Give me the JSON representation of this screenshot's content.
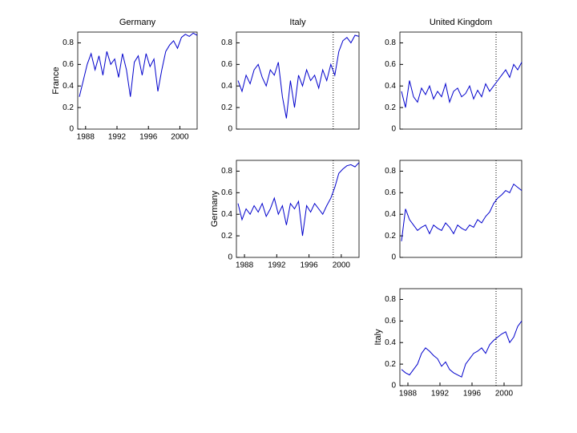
{
  "chart_data": [
    {
      "type": "line",
      "title": "Germany",
      "ylabel": "France",
      "x": [
        1987.2,
        1987.7,
        1988.2,
        1988.7,
        1989.2,
        1989.7,
        1990.2,
        1990.7,
        1991.2,
        1991.7,
        1992.2,
        1992.7,
        1993.2,
        1993.7,
        1994.2,
        1994.7,
        1995.2,
        1995.7,
        1996.2,
        1996.7,
        1997.2,
        1997.7,
        1998.2,
        1998.7,
        1999.2,
        1999.7,
        2000.2,
        2000.7,
        2001.2,
        2001.7,
        2002.2
      ],
      "series": [
        {
          "color": "#0000cc",
          "values": [
            0.3,
            0.45,
            0.6,
            0.7,
            0.55,
            0.68,
            0.5,
            0.72,
            0.6,
            0.65,
            0.48,
            0.7,
            0.55,
            0.3,
            0.62,
            0.68,
            0.5,
            0.7,
            0.58,
            0.65,
            0.35,
            0.55,
            0.72,
            0.78,
            0.82,
            0.75,
            0.85,
            0.88,
            0.86,
            0.89,
            0.87
          ]
        }
      ],
      "xlim": [
        1987,
        2002.2
      ],
      "xticks": [
        1988,
        1992,
        1996,
        2000
      ],
      "ylim": [
        0,
        0.9
      ],
      "yticks": [
        0,
        0.2,
        0.4,
        0.6,
        0.8
      ]
    },
    {
      "type": "line",
      "title": "Italy",
      "x": [
        1987.2,
        1987.7,
        1988.2,
        1988.7,
        1989.2,
        1989.7,
        1990.2,
        1990.7,
        1991.2,
        1991.7,
        1992.2,
        1992.7,
        1993.2,
        1993.7,
        1994.2,
        1994.7,
        1995.2,
        1995.7,
        1996.2,
        1996.7,
        1997.2,
        1997.7,
        1998.2,
        1998.7,
        1999.2,
        1999.7,
        2000.2,
        2000.7,
        2001.2,
        2001.7,
        2002.2
      ],
      "series": [
        {
          "color": "#0000cc",
          "values": [
            0.45,
            0.35,
            0.5,
            0.42,
            0.55,
            0.6,
            0.48,
            0.4,
            0.55,
            0.5,
            0.62,
            0.3,
            0.1,
            0.45,
            0.2,
            0.5,
            0.4,
            0.55,
            0.45,
            0.5,
            0.38,
            0.55,
            0.45,
            0.6,
            0.5,
            0.72,
            0.82,
            0.85,
            0.8,
            0.87,
            0.86
          ]
        }
      ],
      "xlim": [
        1987,
        2002.2
      ],
      "vline": 1999,
      "ylim": [
        0,
        0.9
      ],
      "yticks": [
        0,
        0.2,
        0.4,
        0.6,
        0.8
      ]
    },
    {
      "type": "line",
      "title": "United Kingdom",
      "x": [
        1987.2,
        1987.7,
        1988.2,
        1988.7,
        1989.2,
        1989.7,
        1990.2,
        1990.7,
        1991.2,
        1991.7,
        1992.2,
        1992.7,
        1993.2,
        1993.7,
        1994.2,
        1994.7,
        1995.2,
        1995.7,
        1996.2,
        1996.7,
        1997.2,
        1997.7,
        1998.2,
        1998.7,
        1999.2,
        1999.7,
        2000.2,
        2000.7,
        2001.2,
        2001.7,
        2002.2
      ],
      "series": [
        {
          "color": "#0000cc",
          "values": [
            0.35,
            0.2,
            0.45,
            0.3,
            0.25,
            0.38,
            0.32,
            0.4,
            0.28,
            0.35,
            0.3,
            0.42,
            0.25,
            0.35,
            0.38,
            0.3,
            0.33,
            0.4,
            0.28,
            0.36,
            0.3,
            0.42,
            0.35,
            0.4,
            0.45,
            0.5,
            0.55,
            0.48,
            0.6,
            0.55,
            0.62
          ]
        }
      ],
      "xlim": [
        1987,
        2002.2
      ],
      "vline": 1999,
      "ylim": [
        0,
        0.9
      ],
      "yticks": [
        0,
        0.2,
        0.4,
        0.6,
        0.8
      ]
    },
    {
      "type": "line",
      "ylabel": "Germany",
      "x": [
        1987.2,
        1987.7,
        1988.2,
        1988.7,
        1989.2,
        1989.7,
        1990.2,
        1990.7,
        1991.2,
        1991.7,
        1992.2,
        1992.7,
        1993.2,
        1993.7,
        1994.2,
        1994.7,
        1995.2,
        1995.7,
        1996.2,
        1996.7,
        1997.2,
        1997.7,
        1998.2,
        1998.7,
        1999.2,
        1999.7,
        2000.2,
        2000.7,
        2001.2,
        2001.7,
        2002.2
      ],
      "series": [
        {
          "color": "#0000cc",
          "values": [
            0.5,
            0.35,
            0.45,
            0.4,
            0.48,
            0.42,
            0.5,
            0.38,
            0.45,
            0.55,
            0.4,
            0.48,
            0.3,
            0.5,
            0.45,
            0.52,
            0.2,
            0.48,
            0.42,
            0.5,
            0.45,
            0.4,
            0.48,
            0.55,
            0.65,
            0.78,
            0.82,
            0.85,
            0.86,
            0.84,
            0.88
          ]
        }
      ],
      "xlim": [
        1987,
        2002.2
      ],
      "xticks": [
        1988,
        1992,
        1996,
        2000
      ],
      "vline": 1999,
      "ylim": [
        0,
        0.9
      ],
      "yticks": [
        0,
        0.2,
        0.4,
        0.6,
        0.8
      ]
    },
    {
      "type": "line",
      "x": [
        1987.2,
        1987.7,
        1988.2,
        1988.7,
        1989.2,
        1989.7,
        1990.2,
        1990.7,
        1991.2,
        1991.7,
        1992.2,
        1992.7,
        1993.2,
        1993.7,
        1994.2,
        1994.7,
        1995.2,
        1995.7,
        1996.2,
        1996.7,
        1997.2,
        1997.7,
        1998.2,
        1998.7,
        1999.2,
        1999.7,
        2000.2,
        2000.7,
        2001.2,
        2001.7,
        2002.2
      ],
      "series": [
        {
          "color": "#0000cc",
          "values": [
            0.15,
            0.45,
            0.35,
            0.3,
            0.25,
            0.28,
            0.3,
            0.22,
            0.3,
            0.27,
            0.25,
            0.32,
            0.28,
            0.22,
            0.3,
            0.27,
            0.25,
            0.3,
            0.28,
            0.35,
            0.32,
            0.38,
            0.42,
            0.5,
            0.55,
            0.58,
            0.62,
            0.6,
            0.68,
            0.65,
            0.62
          ]
        }
      ],
      "xlim": [
        1987,
        2002.2
      ],
      "vline": 1999,
      "ylim": [
        0,
        0.9
      ],
      "yticks": [
        0,
        0.2,
        0.4,
        0.6,
        0.8
      ]
    },
    {
      "type": "line",
      "ylabel": "Italy",
      "x": [
        1987.2,
        1987.7,
        1988.2,
        1988.7,
        1989.2,
        1989.7,
        1990.2,
        1990.7,
        1991.2,
        1991.7,
        1992.2,
        1992.7,
        1993.2,
        1993.7,
        1994.2,
        1994.7,
        1995.2,
        1995.7,
        1996.2,
        1996.7,
        1997.2,
        1997.7,
        1998.2,
        1998.7,
        1999.2,
        1999.7,
        2000.2,
        2000.7,
        2001.2,
        2001.7,
        2002.2
      ],
      "series": [
        {
          "color": "#0000cc",
          "values": [
            0.15,
            0.12,
            0.1,
            0.15,
            0.2,
            0.3,
            0.35,
            0.32,
            0.28,
            0.25,
            0.18,
            0.22,
            0.15,
            0.12,
            0.1,
            0.08,
            0.2,
            0.25,
            0.3,
            0.32,
            0.35,
            0.3,
            0.38,
            0.42,
            0.45,
            0.48,
            0.5,
            0.4,
            0.45,
            0.55,
            0.6
          ]
        }
      ],
      "xlim": [
        1987,
        2002.2
      ],
      "xticks": [
        1988,
        1992,
        1996,
        2000
      ],
      "vline": 1999,
      "ylim": [
        0,
        0.9
      ],
      "yticks": [
        0,
        0.2,
        0.4,
        0.6,
        0.8
      ]
    }
  ]
}
